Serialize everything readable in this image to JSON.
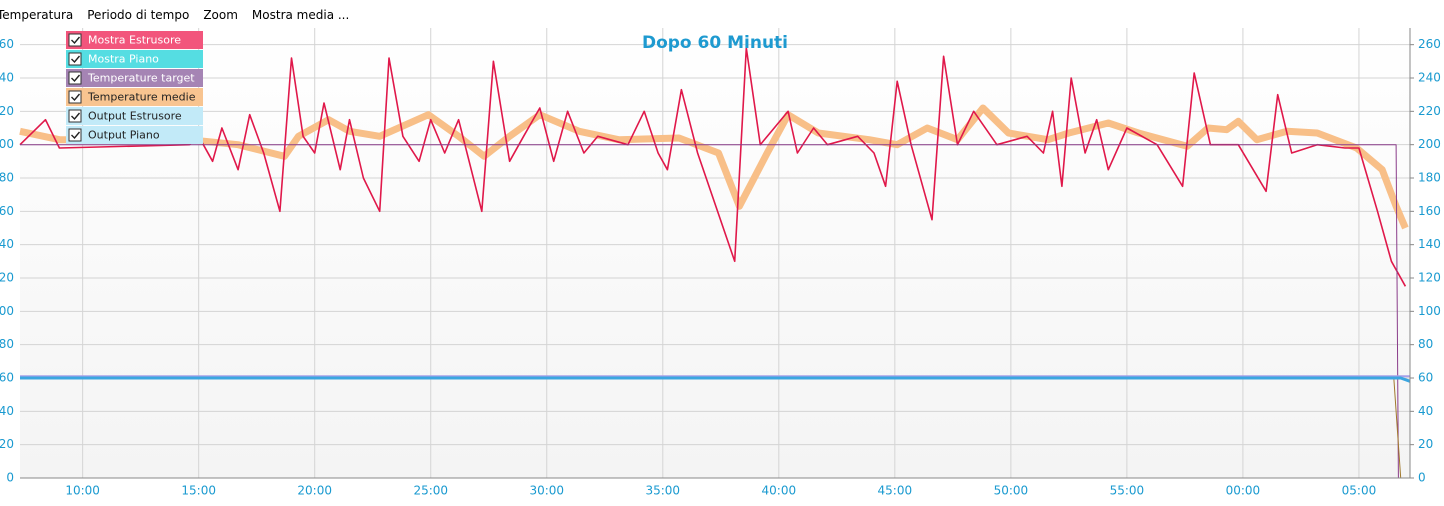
{
  "menu": [
    "Temperatura",
    "Periodo di tempo",
    "Zoom",
    "Mostra media ..."
  ],
  "chart_data": {
    "type": "line",
    "title": "Dopo 60 Minuti",
    "xlim": [
      7.3,
      67.2
    ],
    "ylim": [
      0,
      270
    ],
    "xticks": [
      {
        "value": 10,
        "label": "10:00"
      },
      {
        "value": 15,
        "label": "15:00"
      },
      {
        "value": 20,
        "label": "20:00"
      },
      {
        "value": 25,
        "label": "25:00"
      },
      {
        "value": 30,
        "label": "30:00"
      },
      {
        "value": 35,
        "label": "35:00"
      },
      {
        "value": 40,
        "label": "40:00"
      },
      {
        "value": 45,
        "label": "45:00"
      },
      {
        "value": 50,
        "label": "50:00"
      },
      {
        "value": 55,
        "label": "55:00"
      },
      {
        "value": 60,
        "label": "00:00"
      },
      {
        "value": 65,
        "label": "05:00"
      }
    ],
    "yticks": [
      0,
      20,
      40,
      60,
      80,
      100,
      120,
      140,
      160,
      180,
      200,
      220,
      240,
      260
    ],
    "grid": true,
    "legend": "top-left",
    "series": [
      {
        "name": "Mostra Estrusore",
        "color": "#e0184a",
        "legend_color": "#f2557c",
        "x": [
          7.3,
          8.4,
          9.0,
          14.6,
          15.0,
          15.6,
          16.0,
          16.7,
          17.2,
          17.8,
          18.5,
          19.0,
          19.5,
          20.0,
          20.4,
          21.1,
          21.5,
          22.1,
          22.8,
          23.2,
          23.8,
          24.5,
          25.0,
          25.6,
          26.2,
          27.2,
          27.7,
          28.4,
          29.0,
          29.7,
          30.3,
          30.9,
          31.6,
          32.2,
          33.5,
          34.2,
          34.8,
          35.2,
          35.8,
          36.5,
          38.1,
          38.6,
          39.2,
          40.4,
          40.8,
          41.5,
          42.1,
          43.4,
          44.1,
          44.6,
          45.1,
          45.7,
          46.6,
          47.1,
          47.7,
          48.4,
          49.4,
          50.7,
          51.4,
          51.8,
          52.2,
          52.6,
          53.2,
          53.7,
          54.2,
          55.0,
          56.3,
          57.4,
          57.9,
          58.6,
          59.8,
          61.0,
          61.5,
          62.1,
          63.2,
          64.4,
          65.0,
          65.8,
          66.4,
          67.0
        ],
        "values": [
          200,
          215,
          198,
          200,
          205,
          190,
          210,
          185,
          218,
          195,
          160,
          252,
          205,
          195,
          225,
          185,
          215,
          180,
          160,
          252,
          205,
          190,
          215,
          195,
          215,
          160,
          250,
          190,
          205,
          222,
          190,
          220,
          195,
          205,
          200,
          220,
          195,
          185,
          233,
          195,
          130,
          258,
          200,
          220,
          195,
          210,
          200,
          205,
          195,
          175,
          238,
          200,
          155,
          253,
          200,
          220,
          200,
          205,
          195,
          220,
          175,
          240,
          195,
          215,
          185,
          210,
          200,
          175,
          243,
          200,
          200,
          172,
          230,
          195,
          200,
          198,
          198,
          160,
          130,
          115
        ]
      },
      {
        "name": "Mostra Piano",
        "color": "#3ba6e0",
        "legend_color": "#55dde2",
        "x": [
          7.3,
          66.8,
          67.2
        ],
        "values": [
          60,
          60,
          58
        ]
      },
      {
        "name": "Temperature target",
        "color": "#8a3c8a",
        "legend_color": "#a584b4",
        "x": [
          7.3,
          66.6,
          66.7
        ],
        "values": [
          200,
          200,
          0
        ]
      },
      {
        "name": "Temperature medie",
        "color": "#f8bf88",
        "legend_color": "#f8c490",
        "x": [
          7.3,
          9.0,
          14.6,
          16.7,
          18.7,
          19.3,
          20.6,
          21.5,
          22.8,
          24.9,
          26.2,
          27.3,
          28.4,
          29.7,
          31.4,
          33.1,
          35.7,
          37.4,
          38.3,
          39.5,
          40.4,
          41.7,
          43.9,
          45.1,
          46.4,
          47.7,
          48.8,
          49.9,
          51.6,
          52.5,
          54.2,
          55.5,
          57.6,
          58.5,
          59.3,
          59.8,
          60.6,
          61.9,
          63.2,
          64.9,
          66.0,
          66.6,
          67.0
        ],
        "values": [
          208,
          203,
          203,
          200,
          193,
          205,
          215,
          208,
          205,
          218,
          205,
          193,
          205,
          218,
          208,
          203,
          204,
          195,
          163,
          195,
          218,
          207,
          203,
          200,
          210,
          203,
          222,
          207,
          203,
          207,
          213,
          207,
          199,
          210,
          209,
          214,
          203,
          208,
          207,
          198,
          185,
          163,
          150
        ]
      },
      {
        "name": "Output Estrusore",
        "color": "#a0782c",
        "legend_color": "#c2eaf8",
        "x": [
          7.3,
          66.5,
          66.8
        ],
        "values": [
          60,
          60,
          0
        ]
      },
      {
        "name": "Output Piano",
        "color": "#a8a0e8",
        "legend_color": "#c2eaf8",
        "x": [
          7.3,
          67.2
        ],
        "values": [
          61,
          61
        ]
      }
    ]
  }
}
